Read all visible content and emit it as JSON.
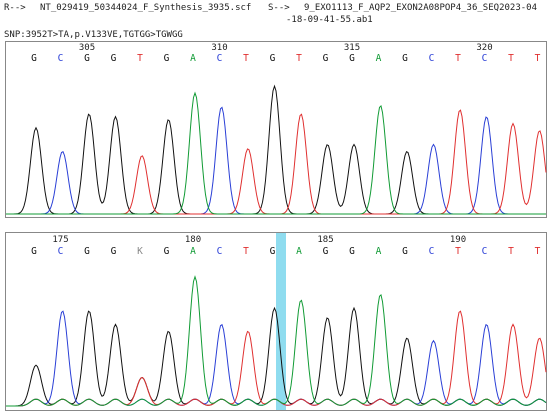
{
  "header": {
    "r_label": "R-->",
    "r_file": "NT_029419_50344024_F_Synthesis_3935.scf",
    "s_label": "S-->",
    "s_file_lines": [
      "9_EXO1113_F_AQP2_EXON2A08POP4_36_SEQ2023-04",
      "-18-09-41-55.ab1"
    ]
  },
  "snp": "SNP:3952T>TA,p.V133VE,TGTGG>TGWGG",
  "panels": [
    {
      "numbers": [
        "305",
        "310",
        "315",
        "320"
      ],
      "bases": [
        "G",
        "C",
        "G",
        "G",
        "T",
        "G",
        "A",
        "C",
        "T",
        "G",
        "T",
        "G",
        "G",
        "A",
        "G",
        "C",
        "T",
        "C",
        "T",
        "T"
      ]
    },
    {
      "numbers": [
        "175",
        "180",
        "185",
        "190"
      ],
      "bases": [
        "G",
        "C",
        "G",
        "G",
        "K",
        "G",
        "A",
        "C",
        "T",
        "G",
        "A",
        "G",
        "G",
        "A",
        "G",
        "C",
        "T",
        "C",
        "T",
        "T"
      ]
    }
  ]
}
